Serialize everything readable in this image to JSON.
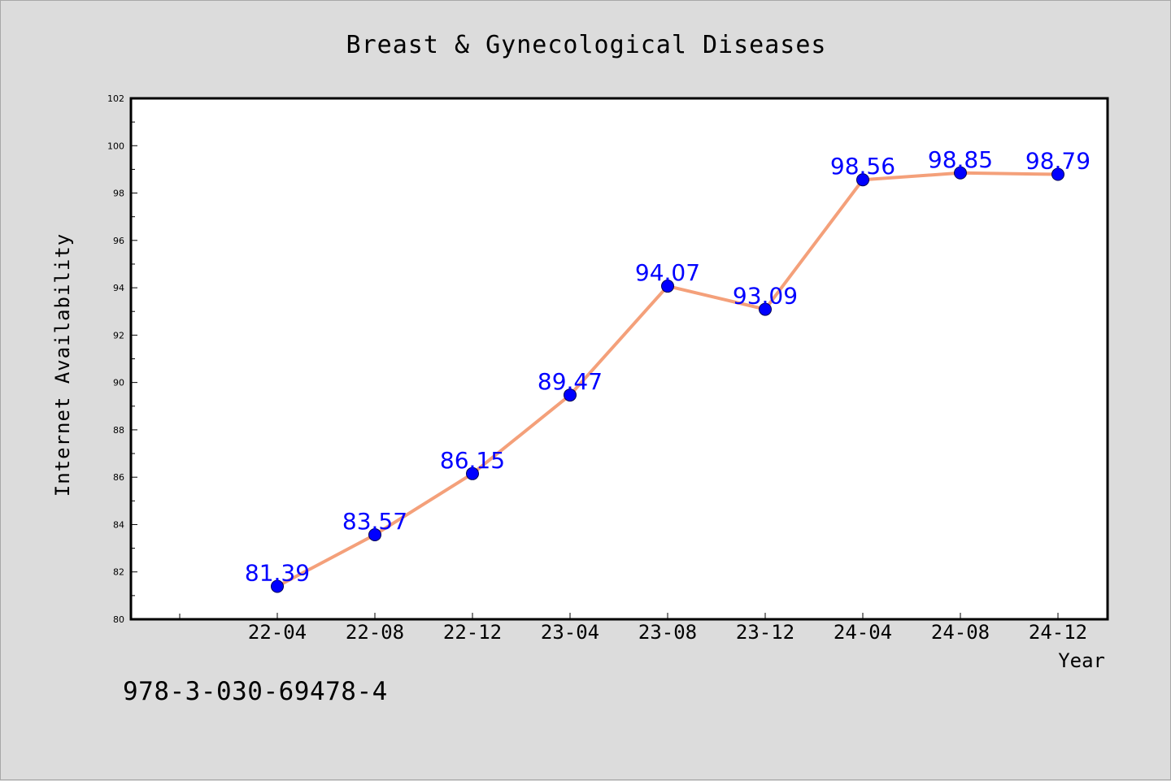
{
  "chart_data": {
    "type": "line",
    "title": "Breast & Gynecological Diseases",
    "xlabel": "Year",
    "ylabel": "Internet Availability",
    "categories": [
      "22-04",
      "22-08",
      "22-12",
      "23-04",
      "23-08",
      "23-12",
      "24-04",
      "24-08",
      "24-12"
    ],
    "series": [
      {
        "values": [
          81.39,
          83.57,
          86.15,
          89.47,
          94.07,
          93.09,
          98.56,
          98.85,
          98.79
        ],
        "labels": [
          "81.39",
          "83.57",
          "86.15",
          "89.47",
          "94.07",
          "93.09",
          "98.56",
          "98.85",
          "98.79"
        ]
      }
    ],
    "ylim": [
      80,
      102
    ],
    "yticks": [
      "80",
      "82",
      "84",
      "86",
      "88",
      "90",
      "92",
      "94",
      "96",
      "98",
      "100",
      "102"
    ],
    "grid": false,
    "legend": "none"
  },
  "colors": {
    "line": "#f4a07a",
    "marker": "#0000ff",
    "label": "#0000ff",
    "background": "#dcdcdc",
    "plot_background": "#ffffff"
  },
  "footer_text": "978-3-030-69478-4"
}
